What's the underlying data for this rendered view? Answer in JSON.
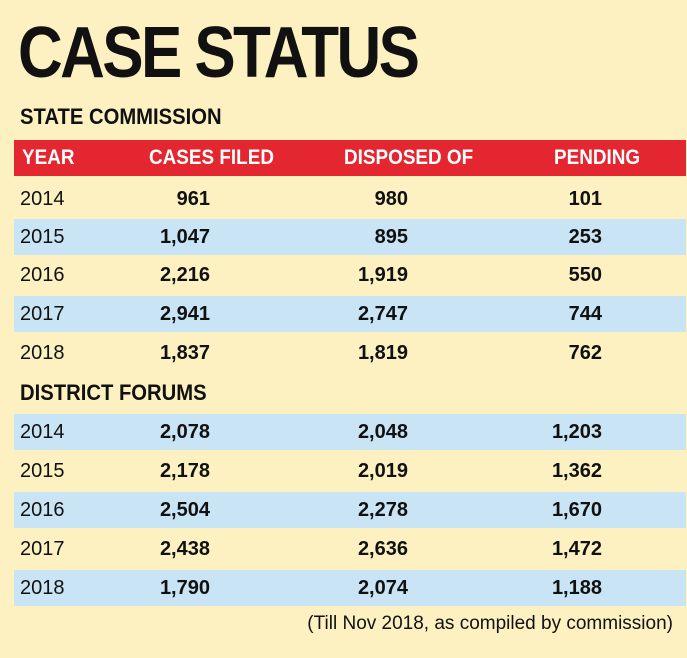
{
  "title": "CASE STATUS",
  "columns": [
    "YEAR",
    "CASES FILED",
    "DISPOSED OF",
    "PENDING"
  ],
  "sections": [
    {
      "name": "STATE COMMISSION",
      "rows": [
        {
          "year": "2014",
          "filed": "961",
          "disposed": "980",
          "pending": "101"
        },
        {
          "year": "2015",
          "filed": "1,047",
          "disposed": "895",
          "pending": "253"
        },
        {
          "year": "2016",
          "filed": "2,216",
          "disposed": "1,919",
          "pending": "550"
        },
        {
          "year": "2017",
          "filed": "2,941",
          "disposed": "2,747",
          "pending": "744"
        },
        {
          "year": "2018",
          "filed": "1,837",
          "disposed": "1,819",
          "pending": "762"
        }
      ]
    },
    {
      "name": "DISTRICT FORUMS",
      "rows": [
        {
          "year": "2014",
          "filed": "2,078",
          "disposed": "2,048",
          "pending": "1,203"
        },
        {
          "year": "2015",
          "filed": "2,178",
          "disposed": "2,019",
          "pending": "1,362"
        },
        {
          "year": "2016",
          "filed": "2,504",
          "disposed": "2,278",
          "pending": "1,670"
        },
        {
          "year": "2017",
          "filed": "2,438",
          "disposed": "2,636",
          "pending": "1,472"
        },
        {
          "year": "2018",
          "filed": "1,790",
          "disposed": "2,074",
          "pending": "1,188"
        }
      ]
    }
  ],
  "footnote": "(Till Nov 2018, as compiled by commission)",
  "colors": {
    "background": "#fdf1c2",
    "header": "#e3262f",
    "row_shade": "#c8e4f5"
  },
  "chart_data": {
    "type": "table",
    "title": "CASE STATUS",
    "columns": [
      "YEAR",
      "CASES FILED",
      "DISPOSED OF",
      "PENDING"
    ],
    "tables": [
      {
        "name": "STATE COMMISSION",
        "rows": [
          [
            2014,
            961,
            980,
            101
          ],
          [
            2015,
            1047,
            895,
            253
          ],
          [
            2016,
            2216,
            1919,
            550
          ],
          [
            2017,
            2941,
            2747,
            744
          ],
          [
            2018,
            1837,
            1819,
            762
          ]
        ]
      },
      {
        "name": "DISTRICT FORUMS",
        "rows": [
          [
            2014,
            2078,
            2048,
            1203
          ],
          [
            2015,
            2178,
            2019,
            1362
          ],
          [
            2016,
            2504,
            2278,
            1670
          ],
          [
            2017,
            2438,
            2636,
            1472
          ],
          [
            2018,
            1790,
            2074,
            1188
          ]
        ]
      }
    ]
  }
}
